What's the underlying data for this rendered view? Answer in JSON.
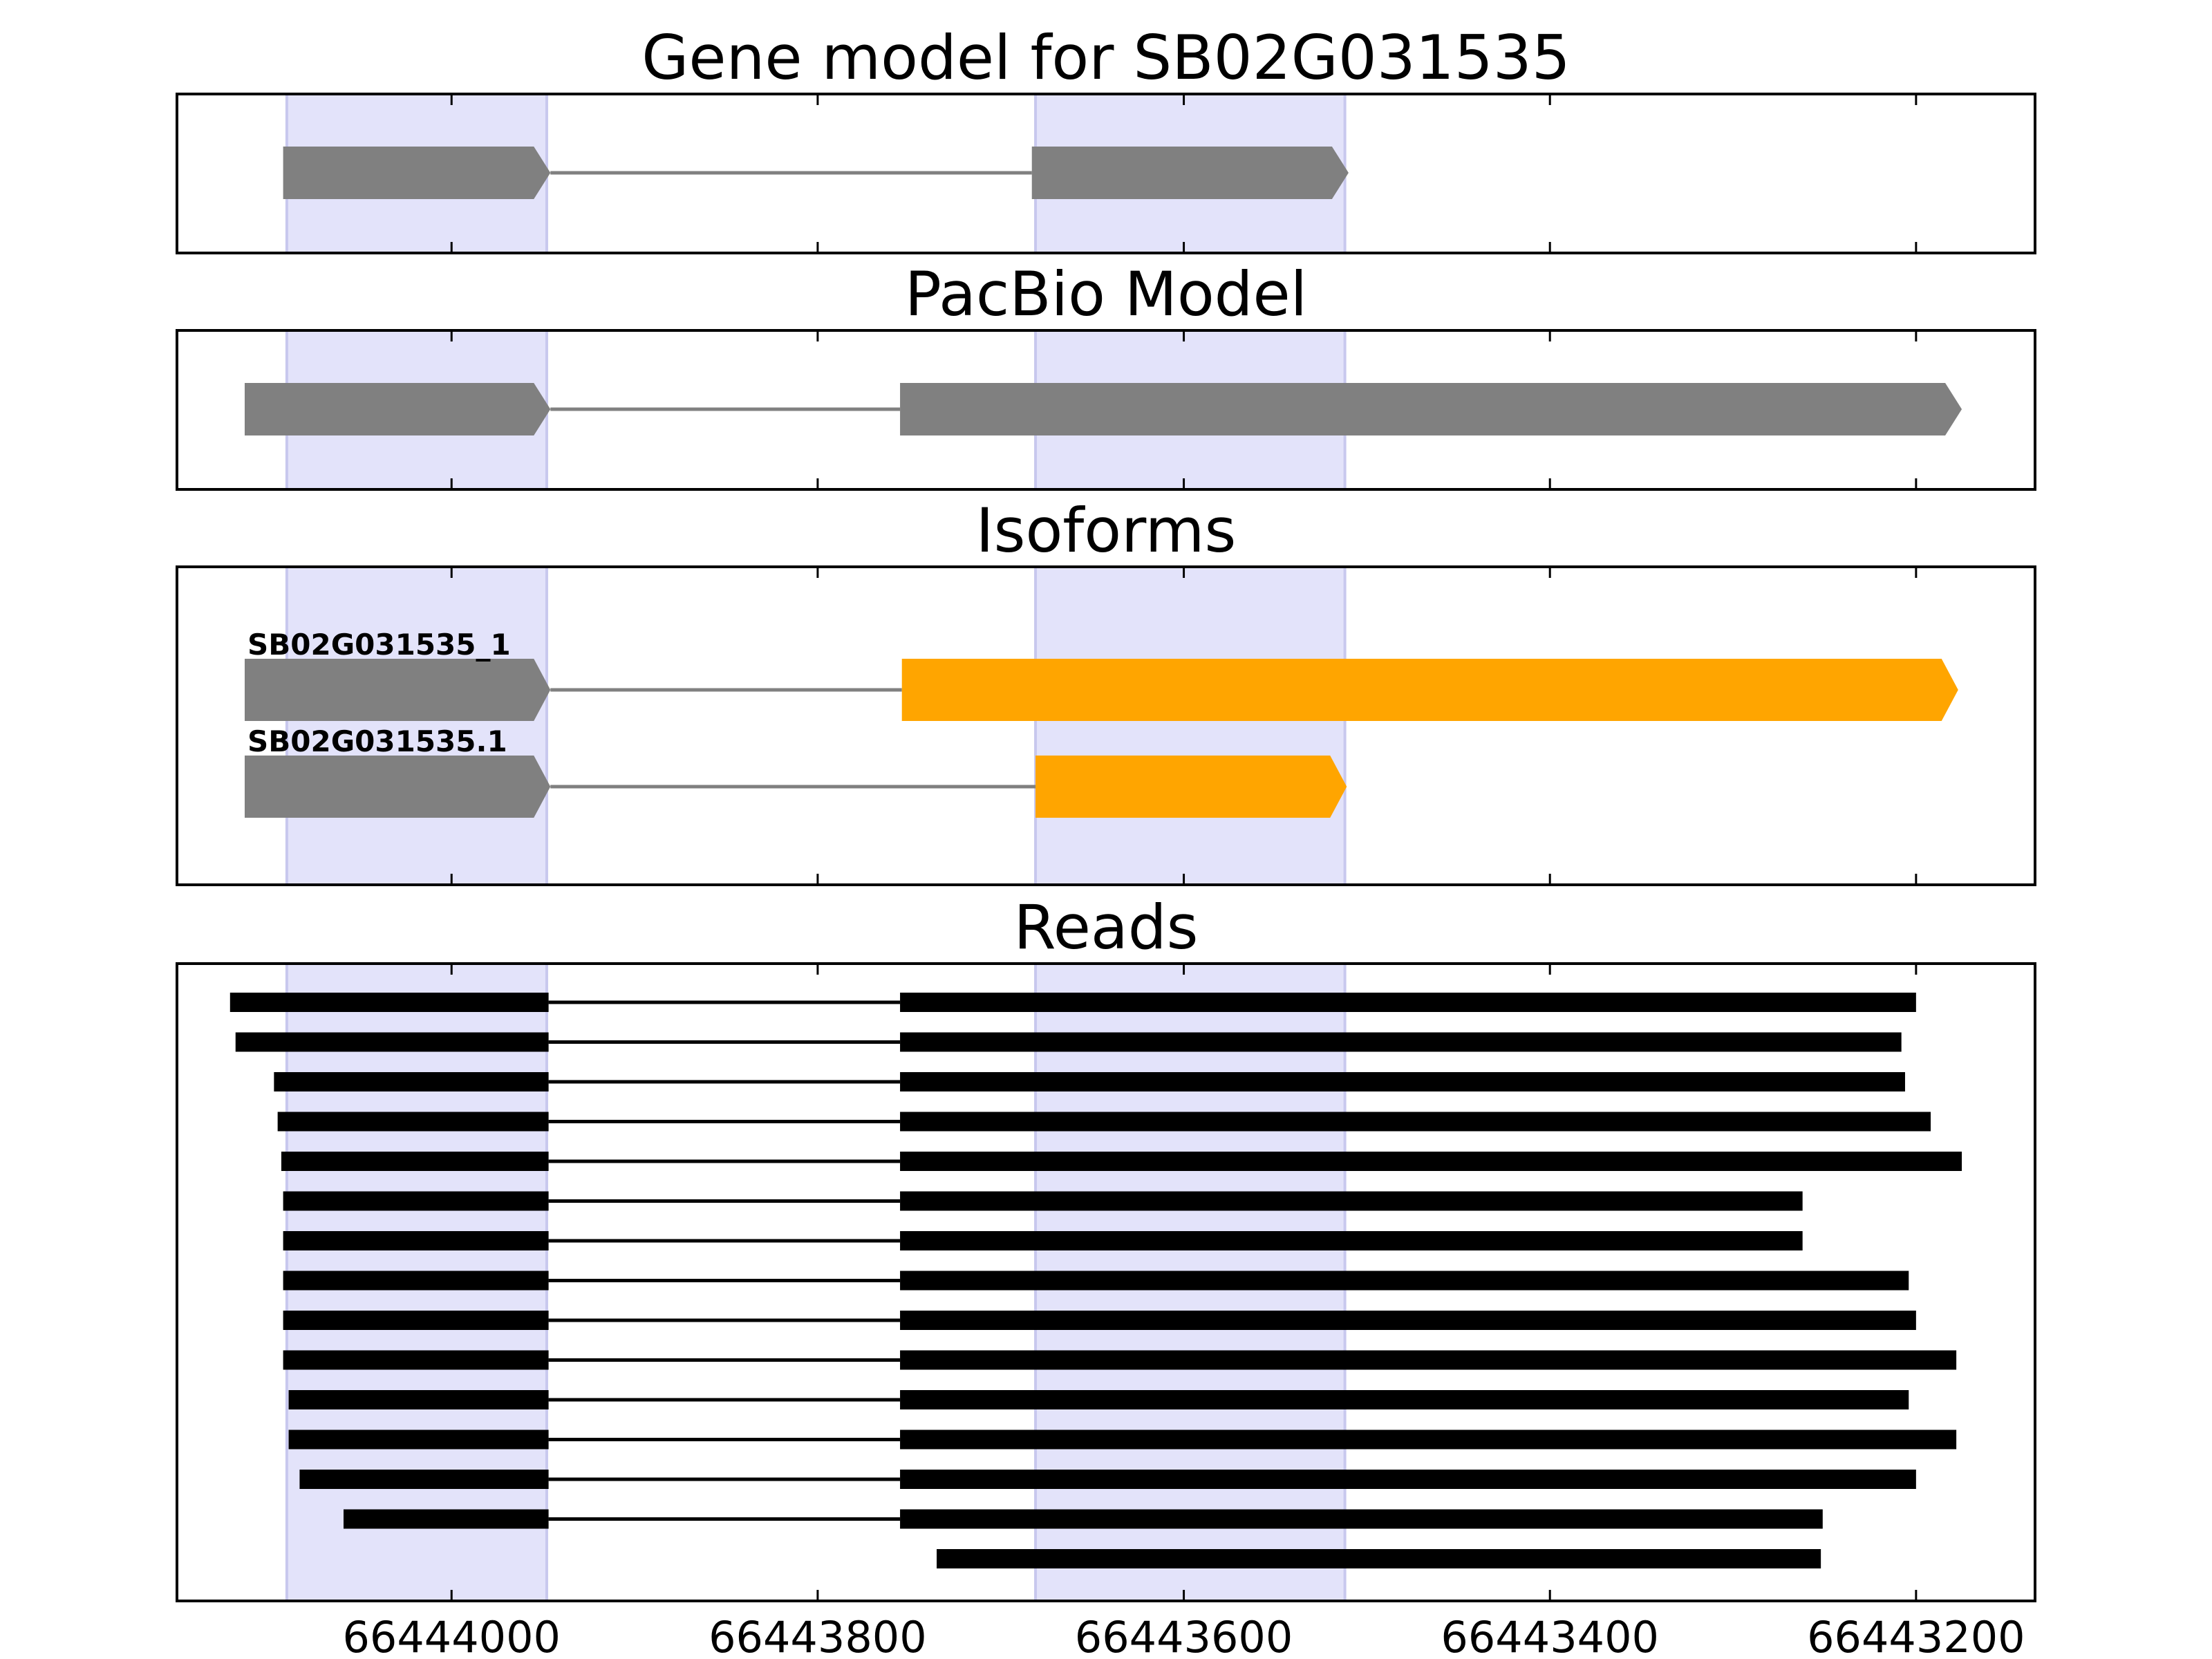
{
  "chart_data": {
    "type": "gene_track",
    "xlim": [
      66444150,
      66443135
    ],
    "x_reversed": true,
    "x_ticks": [
      66444000,
      66443800,
      66443600,
      66443400,
      66443200
    ],
    "x_tick_labels": [
      "66444000",
      "66443800",
      "66443600",
      "66443400",
      "66443200"
    ],
    "highlight_regions": [
      [
        66444090,
        66443948
      ],
      [
        66443681,
        66443512
      ]
    ],
    "colors": {
      "highlight": "#e3e3fa",
      "highlight_edge": "#c8c8ee",
      "model_exon": "#808080",
      "isoform_exon": "#ffa500",
      "intron": "#808080",
      "read": "#000000"
    },
    "panels": [
      {
        "id": "gene-model",
        "title": "Gene model for SB02G031535",
        "tracks": [
          {
            "label": "",
            "exons": [
              {
                "start": 66444092,
                "end": 66443946,
                "color": "model"
              },
              {
                "start": 66443683,
                "end": 66443510,
                "color": "model"
              }
            ]
          }
        ]
      },
      {
        "id": "pacbio-model",
        "title": "PacBio Model",
        "tracks": [
          {
            "label": "",
            "exons": [
              {
                "start": 66444113,
                "end": 66443946,
                "color": "model"
              },
              {
                "start": 66443755,
                "end": 66443175,
                "color": "model"
              }
            ]
          }
        ]
      },
      {
        "id": "isoforms",
        "title": "Isoforms",
        "tracks": [
          {
            "label": "SB02G031535_1",
            "exons": [
              {
                "start": 66444113,
                "end": 66443946,
                "color": "model"
              },
              {
                "start": 66443754,
                "end": 66443177,
                "color": "isoform"
              }
            ]
          },
          {
            "label": "SB02G031535.1",
            "exons": [
              {
                "start": 66444113,
                "end": 66443946,
                "color": "model"
              },
              {
                "start": 66443681,
                "end": 66443511,
                "color": "isoform"
              }
            ]
          }
        ]
      },
      {
        "id": "reads",
        "title": "Reads",
        "reads": [
          {
            "blocks": [
              [
                66444121,
                66443947
              ],
              [
                66443755,
                66443200
              ]
            ]
          },
          {
            "blocks": [
              [
                66444118,
                66443947
              ],
              [
                66443755,
                66443208
              ]
            ]
          },
          {
            "blocks": [
              [
                66444097,
                66443947
              ],
              [
                66443755,
                66443206
              ]
            ]
          },
          {
            "blocks": [
              [
                66444095,
                66443947
              ],
              [
                66443755,
                66443192
              ]
            ]
          },
          {
            "blocks": [
              [
                66444093,
                66443947
              ],
              [
                66443755,
                66443175
              ]
            ]
          },
          {
            "blocks": [
              [
                66444092,
                66443947
              ],
              [
                66443755,
                66443262
              ]
            ]
          },
          {
            "blocks": [
              [
                66444092,
                66443947
              ],
              [
                66443755,
                66443262
              ]
            ]
          },
          {
            "blocks": [
              [
                66444092,
                66443947
              ],
              [
                66443755,
                66443204
              ]
            ]
          },
          {
            "blocks": [
              [
                66444092,
                66443947
              ],
              [
                66443755,
                66443200
              ]
            ]
          },
          {
            "blocks": [
              [
                66444092,
                66443947
              ],
              [
                66443755,
                66443178
              ]
            ]
          },
          {
            "blocks": [
              [
                66444089,
                66443947
              ],
              [
                66443755,
                66443204
              ]
            ]
          },
          {
            "blocks": [
              [
                66444089,
                66443947
              ],
              [
                66443755,
                66443178
              ]
            ]
          },
          {
            "blocks": [
              [
                66444083,
                66443947
              ],
              [
                66443755,
                66443200
              ]
            ]
          },
          {
            "blocks": [
              [
                66444059,
                66443947
              ],
              [
                66443755,
                66443251
              ]
            ]
          },
          {
            "blocks": [
              [
                66443735,
                66443252
              ]
            ]
          }
        ]
      }
    ]
  }
}
